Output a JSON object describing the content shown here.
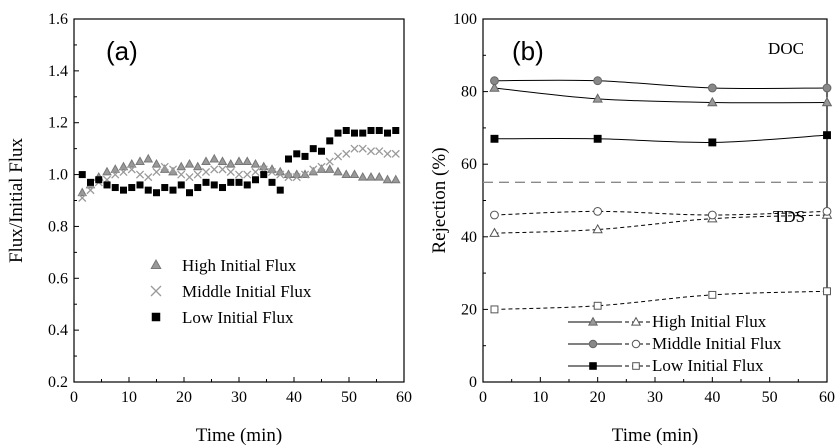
{
  "chart_data": [
    {
      "type": "scatter",
      "panel_label": "(a)",
      "xlabel": "Time (min)",
      "ylabel": "Flux/Initial Flux",
      "xlim": [
        0,
        60
      ],
      "ylim": [
        0.2,
        1.6
      ],
      "xticks": [
        0,
        10,
        20,
        30,
        40,
        50,
        60
      ],
      "yticks": [
        0.2,
        0.4,
        0.6,
        0.8,
        1.0,
        1.2,
        1.4,
        1.6
      ],
      "ytick_labels": [
        "0.2",
        "0.4",
        "0.6",
        "0.8",
        "1.0",
        "1.2",
        "1.4",
        "1.6"
      ],
      "legend_position": "lower-center",
      "series": [
        {
          "name": "High Initial Flux",
          "marker": "triangle",
          "color": "#999999",
          "x": [
            1.5,
            3,
            4.5,
            6,
            7.5,
            9,
            10.5,
            12,
            13.5,
            15,
            16.5,
            18,
            19.5,
            21,
            22.5,
            24,
            25.5,
            27,
            28.5,
            30,
            31.5,
            33,
            34.5,
            36,
            37.5,
            39,
            40.5,
            42,
            43.5,
            45,
            46.5,
            48,
            49.5,
            51,
            52.5,
            54,
            55.5,
            57,
            58.5
          ],
          "y": [
            0.93,
            0.96,
            0.99,
            1.01,
            1.02,
            1.03,
            1.04,
            1.05,
            1.06,
            1.04,
            1.02,
            1.01,
            1.03,
            1.04,
            1.03,
            1.05,
            1.06,
            1.05,
            1.04,
            1.05,
            1.05,
            1.04,
            1.03,
            1.02,
            1.01,
            1.0,
            1.0,
            1.0,
            1.01,
            1.02,
            1.02,
            1.01,
            1.0,
            1.0,
            0.99,
            0.99,
            0.99,
            0.98,
            0.98
          ]
        },
        {
          "name": "Middle Initial Flux",
          "marker": "cross",
          "color": "#9a9a9a",
          "x": [
            1.5,
            3,
            4.5,
            6,
            7.5,
            9,
            10.5,
            12,
            13.5,
            15,
            16.5,
            18,
            19.5,
            21,
            22.5,
            24,
            25.5,
            27,
            28.5,
            30,
            31.5,
            33,
            34.5,
            36,
            37.5,
            39,
            40.5,
            42,
            43.5,
            45,
            46.5,
            48,
            49.5,
            51,
            52.5,
            54,
            55.5,
            57,
            58.5
          ],
          "y": [
            0.91,
            0.94,
            0.97,
            0.98,
            1.0,
            1.01,
            1.02,
            1.0,
            0.99,
            1.01,
            1.03,
            1.02,
            1.0,
            0.99,
            1.0,
            1.01,
            1.02,
            1.02,
            1.01,
            1.0,
            1.0,
            1.01,
            1.02,
            1.01,
            1.0,
            0.99,
            0.99,
            1.0,
            1.02,
            1.03,
            1.05,
            1.07,
            1.08,
            1.1,
            1.1,
            1.09,
            1.09,
            1.08,
            1.08
          ]
        },
        {
          "name": "Low Initial Flux",
          "marker": "square",
          "color": "#000000",
          "x": [
            1.5,
            3,
            4.5,
            6,
            7.5,
            9,
            10.5,
            12,
            13.5,
            15,
            16.5,
            18,
            19.5,
            21,
            22.5,
            24,
            25.5,
            27,
            28.5,
            30,
            31.5,
            33,
            34.5,
            36,
            37.5,
            39,
            40.5,
            42,
            43.5,
            45,
            46.5,
            48,
            49.5,
            51,
            52.5,
            54,
            55.5,
            57,
            58.5
          ],
          "y": [
            1.0,
            0.97,
            0.98,
            0.96,
            0.95,
            0.94,
            0.95,
            0.96,
            0.94,
            0.93,
            0.95,
            0.94,
            0.96,
            0.93,
            0.95,
            0.97,
            0.96,
            0.95,
            0.97,
            0.97,
            0.96,
            0.98,
            1.0,
            0.97,
            0.94,
            1.06,
            1.08,
            1.07,
            1.1,
            1.09,
            1.13,
            1.16,
            1.17,
            1.16,
            1.16,
            1.17,
            1.17,
            1.16,
            1.17
          ]
        }
      ]
    },
    {
      "type": "line",
      "panel_label": "(b)",
      "xlabel": "Time (min)",
      "ylabel": "Rejection (%)",
      "xlim": [
        0,
        60
      ],
      "ylim": [
        0,
        100
      ],
      "xticks": [
        0,
        10,
        20,
        30,
        40,
        50,
        60
      ],
      "yticks": [
        0,
        20,
        40,
        60,
        80,
        100
      ],
      "annotations": [
        "DOC",
        "TDS"
      ],
      "separator_y": 55,
      "legend_position": "lower-right",
      "legend": [
        {
          "name": "High Initial Flux",
          "marker": "triangle",
          "fill": "#999999"
        },
        {
          "name": "Middle Initial Flux",
          "marker": "circle",
          "fill": "#888888"
        },
        {
          "name": "Low Initial Flux",
          "marker": "square",
          "fill": "#000000"
        }
      ],
      "x": [
        2,
        20,
        40,
        60
      ],
      "series": [
        {
          "name": "High Initial Flux DOC",
          "group": "DOC",
          "marker": "triangle",
          "fill": "#999999",
          "dash": "solid",
          "values": [
            81,
            78,
            77,
            77
          ]
        },
        {
          "name": "Middle Initial Flux DOC",
          "group": "DOC",
          "marker": "circle",
          "fill": "#888888",
          "dash": "solid",
          "values": [
            83,
            83,
            81,
            81
          ]
        },
        {
          "name": "Low Initial Flux DOC",
          "group": "DOC",
          "marker": "square",
          "fill": "#000000",
          "dash": "solid",
          "values": [
            67,
            67,
            66,
            68
          ]
        },
        {
          "name": "High Initial Flux TDS",
          "group": "TDS",
          "marker": "triangle",
          "fill": "#ffffff",
          "dash": "dashed",
          "values": [
            41,
            42,
            45,
            46
          ]
        },
        {
          "name": "Middle Initial Flux TDS",
          "group": "TDS",
          "marker": "circle",
          "fill": "#ffffff",
          "dash": "dashed",
          "values": [
            46,
            47,
            46,
            47
          ]
        },
        {
          "name": "Low Initial Flux TDS",
          "group": "TDS",
          "marker": "square",
          "fill": "#ffffff",
          "dash": "dashed",
          "values": [
            20,
            21,
            24,
            25
          ]
        }
      ]
    }
  ]
}
